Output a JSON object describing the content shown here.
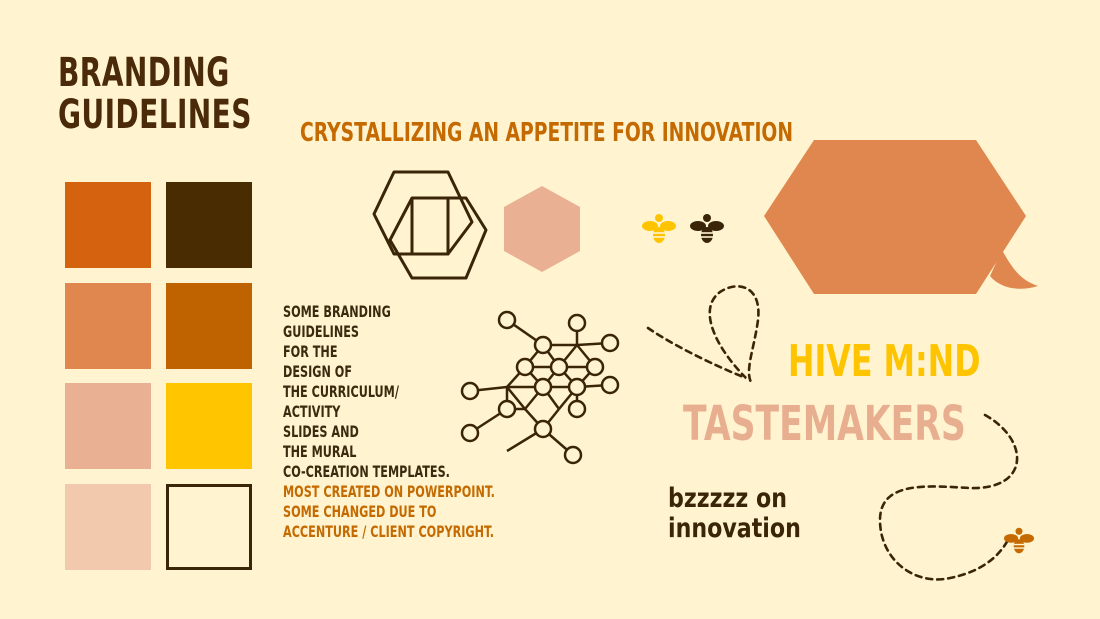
{
  "title": {
    "line1": "BRANDING",
    "line2": "GUIDELINES"
  },
  "subtitle": "CRYSTALLIZING AN APPETITE FOR INNOVATION",
  "palette": {
    "swatches": [
      {
        "name": "burnt-orange",
        "color": "#d4620f"
      },
      {
        "name": "dark-brown",
        "color": "#4a2c03"
      },
      {
        "name": "terracotta",
        "color": "#e08750"
      },
      {
        "name": "caramel",
        "color": "#bf6300"
      },
      {
        "name": "blush",
        "color": "#eab093"
      },
      {
        "name": "golden-yellow",
        "color": "#ffc600"
      },
      {
        "name": "peach",
        "color": "#f2c9ad"
      },
      {
        "name": "cream",
        "color": "#fff4cf"
      }
    ]
  },
  "description": {
    "lines": [
      "SOME BRANDING",
      "GUIDELINES",
      "FOR THE",
      "DESIGN OF",
      "THE CURRICULUM/",
      "ACTIVITY",
      "SLIDES AND",
      "THE MURAL",
      "CO-CREATION TEMPLATES."
    ],
    "accent_lines": [
      "MOST CREATED ON POWERPOINT.",
      "SOME CHANGED DUE TO",
      "ACCENTURE / CLIENT COPYRIGHT."
    ]
  },
  "hive_mind": "HIVE M:ND",
  "tastemakers": "TASTEMAKERS",
  "bzz": {
    "line1": "bzzzzz on",
    "line2": "innovation"
  },
  "colors": {
    "background": "#fff4cf",
    "dark": "#4a2c03",
    "accent": "#c46a00",
    "yellow": "#ffc400",
    "speech_bubble": "#e08750",
    "hex_blush": "#eab093"
  },
  "icons": [
    "cube-hex-outline-icon",
    "hexagon-icon",
    "bee-icon",
    "molecule-network-icon",
    "speech-bubble-icon",
    "bee-flight-path-icon"
  ]
}
